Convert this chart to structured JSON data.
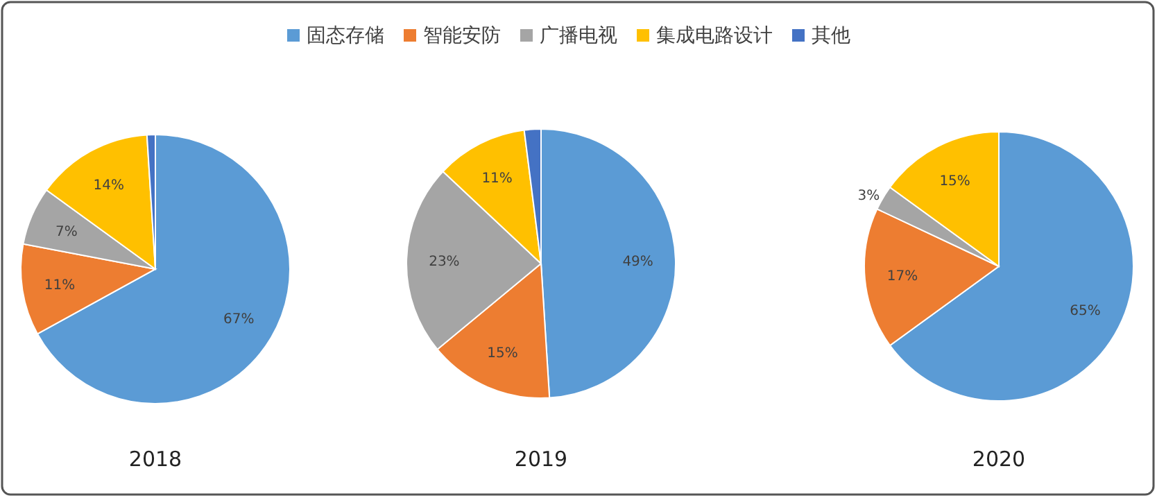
{
  "chart_data": [
    {
      "type": "pie",
      "title": "2018",
      "categories": [
        "固态存储",
        "智能安防",
        "广播电视",
        "集成电路设计",
        "其他"
      ],
      "values": [
        67,
        11,
        7,
        14,
        1
      ],
      "colors": [
        "#5b9bd5",
        "#ed7d31",
        "#a5a5a5",
        "#ffc000",
        "#4472c4"
      ],
      "value_labels": [
        "67%",
        "11%",
        "7%",
        "14%",
        null
      ],
      "legend": "top"
    },
    {
      "type": "pie",
      "title": "2019",
      "categories": [
        null,
        null,
        null,
        null,
        null
      ],
      "values": [
        49,
        15,
        23,
        11,
        2
      ],
      "colors": [
        "#5b9bd5",
        "#ed7d31",
        "#a5a5a5",
        "#ffc000",
        "#4472c4"
      ],
      "value_labels": [
        "49%",
        "15%",
        "23%",
        "11%",
        null
      ]
    },
    {
      "type": "pie",
      "title": "2020",
      "categories": [
        null,
        null,
        null,
        null,
        null
      ],
      "values": [
        65,
        17,
        3,
        15,
        0
      ],
      "colors": [
        "#5b9bd5",
        "#ed7d31",
        "#a5a5a5",
        "#ffc000",
        "#4472c4"
      ],
      "value_labels": [
        "65%",
        "17%",
        "3%",
        "15%",
        null
      ]
    }
  ]
}
